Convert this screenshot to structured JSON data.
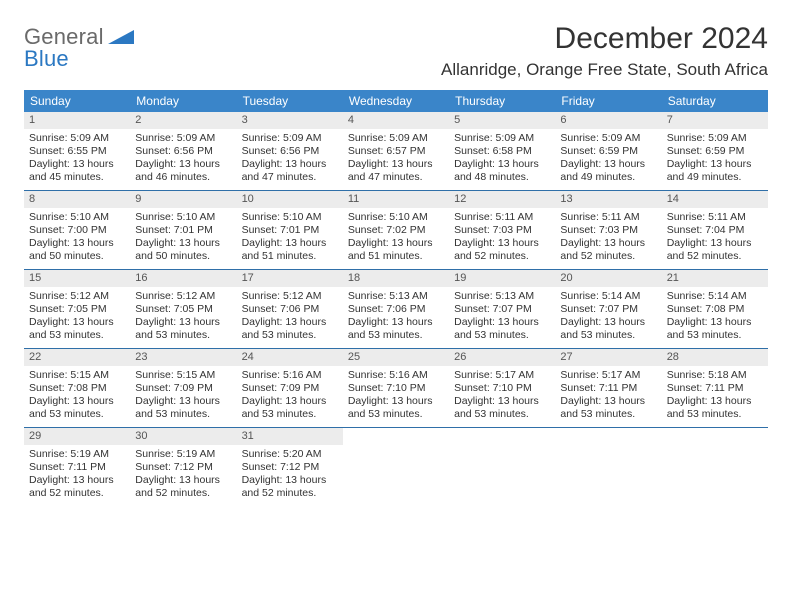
{
  "logo": {
    "word1": "General",
    "word2": "Blue"
  },
  "title": "December 2024",
  "location": "Allanridge, Orange Free State, South Africa",
  "colors": {
    "header_bg": "#3a85c9",
    "header_text": "#ffffff",
    "day_num_bg": "#ececec",
    "row_border": "#2f6fa8",
    "text": "#333333",
    "logo_gray": "#6a6a6a",
    "logo_blue": "#2b78c2"
  },
  "weekdays": [
    "Sunday",
    "Monday",
    "Tuesday",
    "Wednesday",
    "Thursday",
    "Friday",
    "Saturday"
  ],
  "weeks": [
    [
      {
        "n": "1",
        "sr": "5:09 AM",
        "ss": "6:55 PM",
        "dl": "13 hours and 45 minutes."
      },
      {
        "n": "2",
        "sr": "5:09 AM",
        "ss": "6:56 PM",
        "dl": "13 hours and 46 minutes."
      },
      {
        "n": "3",
        "sr": "5:09 AM",
        "ss": "6:56 PM",
        "dl": "13 hours and 47 minutes."
      },
      {
        "n": "4",
        "sr": "5:09 AM",
        "ss": "6:57 PM",
        "dl": "13 hours and 47 minutes."
      },
      {
        "n": "5",
        "sr": "5:09 AM",
        "ss": "6:58 PM",
        "dl": "13 hours and 48 minutes."
      },
      {
        "n": "6",
        "sr": "5:09 AM",
        "ss": "6:59 PM",
        "dl": "13 hours and 49 minutes."
      },
      {
        "n": "7",
        "sr": "5:09 AM",
        "ss": "6:59 PM",
        "dl": "13 hours and 49 minutes."
      }
    ],
    [
      {
        "n": "8",
        "sr": "5:10 AM",
        "ss": "7:00 PM",
        "dl": "13 hours and 50 minutes."
      },
      {
        "n": "9",
        "sr": "5:10 AM",
        "ss": "7:01 PM",
        "dl": "13 hours and 50 minutes."
      },
      {
        "n": "10",
        "sr": "5:10 AM",
        "ss": "7:01 PM",
        "dl": "13 hours and 51 minutes."
      },
      {
        "n": "11",
        "sr": "5:10 AM",
        "ss": "7:02 PM",
        "dl": "13 hours and 51 minutes."
      },
      {
        "n": "12",
        "sr": "5:11 AM",
        "ss": "7:03 PM",
        "dl": "13 hours and 52 minutes."
      },
      {
        "n": "13",
        "sr": "5:11 AM",
        "ss": "7:03 PM",
        "dl": "13 hours and 52 minutes."
      },
      {
        "n": "14",
        "sr": "5:11 AM",
        "ss": "7:04 PM",
        "dl": "13 hours and 52 minutes."
      }
    ],
    [
      {
        "n": "15",
        "sr": "5:12 AM",
        "ss": "7:05 PM",
        "dl": "13 hours and 53 minutes."
      },
      {
        "n": "16",
        "sr": "5:12 AM",
        "ss": "7:05 PM",
        "dl": "13 hours and 53 minutes."
      },
      {
        "n": "17",
        "sr": "5:12 AM",
        "ss": "7:06 PM",
        "dl": "13 hours and 53 minutes."
      },
      {
        "n": "18",
        "sr": "5:13 AM",
        "ss": "7:06 PM",
        "dl": "13 hours and 53 minutes."
      },
      {
        "n": "19",
        "sr": "5:13 AM",
        "ss": "7:07 PM",
        "dl": "13 hours and 53 minutes."
      },
      {
        "n": "20",
        "sr": "5:14 AM",
        "ss": "7:07 PM",
        "dl": "13 hours and 53 minutes."
      },
      {
        "n": "21",
        "sr": "5:14 AM",
        "ss": "7:08 PM",
        "dl": "13 hours and 53 minutes."
      }
    ],
    [
      {
        "n": "22",
        "sr": "5:15 AM",
        "ss": "7:08 PM",
        "dl": "13 hours and 53 minutes."
      },
      {
        "n": "23",
        "sr": "5:15 AM",
        "ss": "7:09 PM",
        "dl": "13 hours and 53 minutes."
      },
      {
        "n": "24",
        "sr": "5:16 AM",
        "ss": "7:09 PM",
        "dl": "13 hours and 53 minutes."
      },
      {
        "n": "25",
        "sr": "5:16 AM",
        "ss": "7:10 PM",
        "dl": "13 hours and 53 minutes."
      },
      {
        "n": "26",
        "sr": "5:17 AM",
        "ss": "7:10 PM",
        "dl": "13 hours and 53 minutes."
      },
      {
        "n": "27",
        "sr": "5:17 AM",
        "ss": "7:11 PM",
        "dl": "13 hours and 53 minutes."
      },
      {
        "n": "28",
        "sr": "5:18 AM",
        "ss": "7:11 PM",
        "dl": "13 hours and 53 minutes."
      }
    ],
    [
      {
        "n": "29",
        "sr": "5:19 AM",
        "ss": "7:11 PM",
        "dl": "13 hours and 52 minutes."
      },
      {
        "n": "30",
        "sr": "5:19 AM",
        "ss": "7:12 PM",
        "dl": "13 hours and 52 minutes."
      },
      {
        "n": "31",
        "sr": "5:20 AM",
        "ss": "7:12 PM",
        "dl": "13 hours and 52 minutes."
      },
      null,
      null,
      null,
      null
    ]
  ],
  "labels": {
    "sunrise": "Sunrise:",
    "sunset": "Sunset:",
    "daylight": "Daylight:"
  }
}
